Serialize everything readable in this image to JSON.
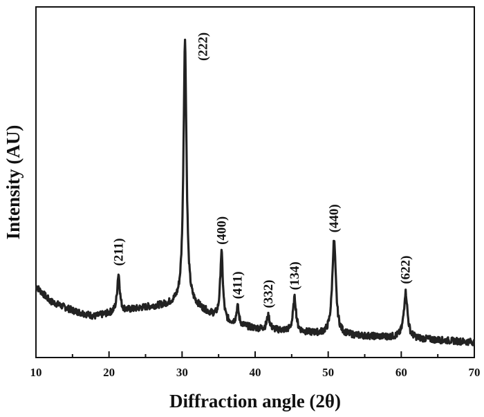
{
  "chart_data": {
    "type": "line",
    "title": "",
    "xlabel": "Diffraction angle (2θ)",
    "ylabel": "Intensity (AU)",
    "xlim": [
      10,
      70
    ],
    "x_ticks": [
      10,
      20,
      30,
      40,
      50,
      60,
      70
    ],
    "y_ticks_shown": false,
    "grid": false,
    "legend": "none",
    "line_color": "#222222",
    "baseline": [
      [
        10,
        0.19
      ],
      [
        12,
        0.14
      ],
      [
        15,
        0.11
      ],
      [
        18,
        0.09
      ],
      [
        20,
        0.1
      ],
      [
        25,
        0.12
      ],
      [
        29,
        0.13
      ],
      [
        32,
        0.12
      ],
      [
        36,
        0.07
      ],
      [
        40,
        0.05
      ],
      [
        45,
        0.04
      ],
      [
        50,
        0.03
      ],
      [
        55,
        0.025
      ],
      [
        60,
        0.02
      ],
      [
        65,
        0.012
      ],
      [
        70,
        0.005
      ]
    ],
    "peaks": [
      {
        "label": "(211)",
        "x": 21.3,
        "y": 0.23,
        "width": 0.22
      },
      {
        "label": "(222)",
        "x": 30.4,
        "y": 1.0,
        "width": 0.25
      },
      {
        "label": "(400)",
        "x": 35.4,
        "y": 0.3,
        "width": 0.22
      },
      {
        "label": "(411)",
        "x": 37.6,
        "y": 0.12,
        "width": 0.2
      },
      {
        "label": "(332)",
        "x": 41.8,
        "y": 0.09,
        "width": 0.25
      },
      {
        "label": "(134)",
        "x": 45.4,
        "y": 0.15,
        "width": 0.25
      },
      {
        "label": "(440)",
        "x": 50.8,
        "y": 0.34,
        "width": 0.3
      },
      {
        "label": "(622)",
        "x": 60.6,
        "y": 0.17,
        "width": 0.3
      }
    ]
  }
}
